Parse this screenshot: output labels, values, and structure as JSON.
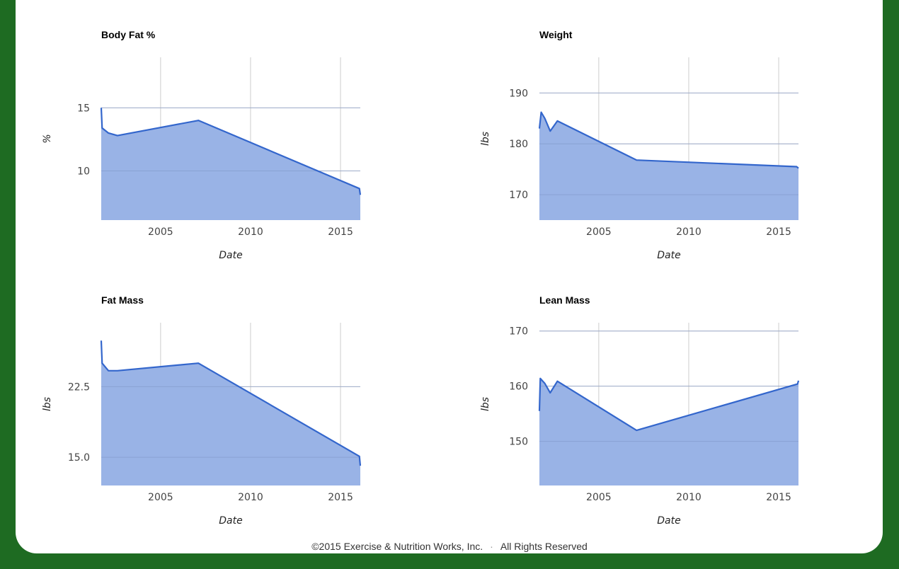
{
  "footer": {
    "copyright": "©2015 Exercise & Nutrition Works, Inc.",
    "separator": "·",
    "rights": "All Rights Reserved"
  },
  "colors": {
    "line": "#3366cc",
    "fill": "#99b3e6",
    "grid": "#cccccc",
    "frame_background": "#1e6b22"
  },
  "chart_data": [
    {
      "type": "area",
      "title": "Body Fat %",
      "xlabel": "Date",
      "ylabel": "%",
      "xlim": [
        2001.7,
        2016.1
      ],
      "ylim": [
        6.1,
        19.0
      ],
      "x_ticks": [
        2005,
        2010,
        2015
      ],
      "y_ticks": [
        10,
        15
      ],
      "y_tick_labels": [
        "10",
        "15"
      ],
      "grid": true,
      "x": [
        2001.7,
        2001.75,
        2002.1,
        2002.6,
        2007.1,
        2016.05,
        2016.1
      ],
      "values": [
        15.0,
        13.4,
        13.0,
        12.8,
        14.0,
        8.6,
        8.1
      ]
    },
    {
      "type": "area",
      "title": "Weight",
      "xlabel": "Date",
      "ylabel": "lbs",
      "xlim": [
        2001.7,
        2016.1
      ],
      "ylim": [
        165.0,
        197.0
      ],
      "x_ticks": [
        2005,
        2010,
        2015
      ],
      "y_ticks": [
        170,
        180,
        190
      ],
      "y_tick_labels": [
        "170",
        "180",
        "190"
      ],
      "grid": true,
      "x": [
        2001.7,
        2001.8,
        2002.0,
        2002.3,
        2002.7,
        2007.1,
        2016.0,
        2016.1
      ],
      "values": [
        183.0,
        186.2,
        185.0,
        182.5,
        184.5,
        176.8,
        175.5,
        175.2
      ]
    },
    {
      "type": "area",
      "title": "Fat Mass",
      "xlabel": "Date",
      "ylabel": "lbs",
      "xlim": [
        2001.7,
        2016.1
      ],
      "ylim": [
        12.0,
        29.3
      ],
      "x_ticks": [
        2005,
        2010,
        2015
      ],
      "y_ticks": [
        15.0,
        22.5
      ],
      "y_tick_labels": [
        "15.0",
        "22.5"
      ],
      "grid": true,
      "x": [
        2001.7,
        2001.75,
        2002.1,
        2002.6,
        2007.1,
        2016.05,
        2016.1
      ],
      "values": [
        27.4,
        25.0,
        24.2,
        24.2,
        25.0,
        15.1,
        14.1
      ]
    },
    {
      "type": "area",
      "title": "Lean Mass",
      "xlabel": "Date",
      "ylabel": "lbs",
      "xlim": [
        2001.7,
        2016.1
      ],
      "ylim": [
        142.0,
        171.5
      ],
      "x_ticks": [
        2005,
        2010,
        2015
      ],
      "y_ticks": [
        150,
        160,
        170
      ],
      "y_tick_labels": [
        "150",
        "160",
        "170"
      ],
      "grid": true,
      "x": [
        2001.7,
        2001.75,
        2002.0,
        2002.3,
        2002.7,
        2007.1,
        2016.05,
        2016.1
      ],
      "values": [
        155.5,
        161.4,
        160.5,
        158.8,
        160.9,
        152.0,
        160.4,
        161.0
      ]
    }
  ]
}
